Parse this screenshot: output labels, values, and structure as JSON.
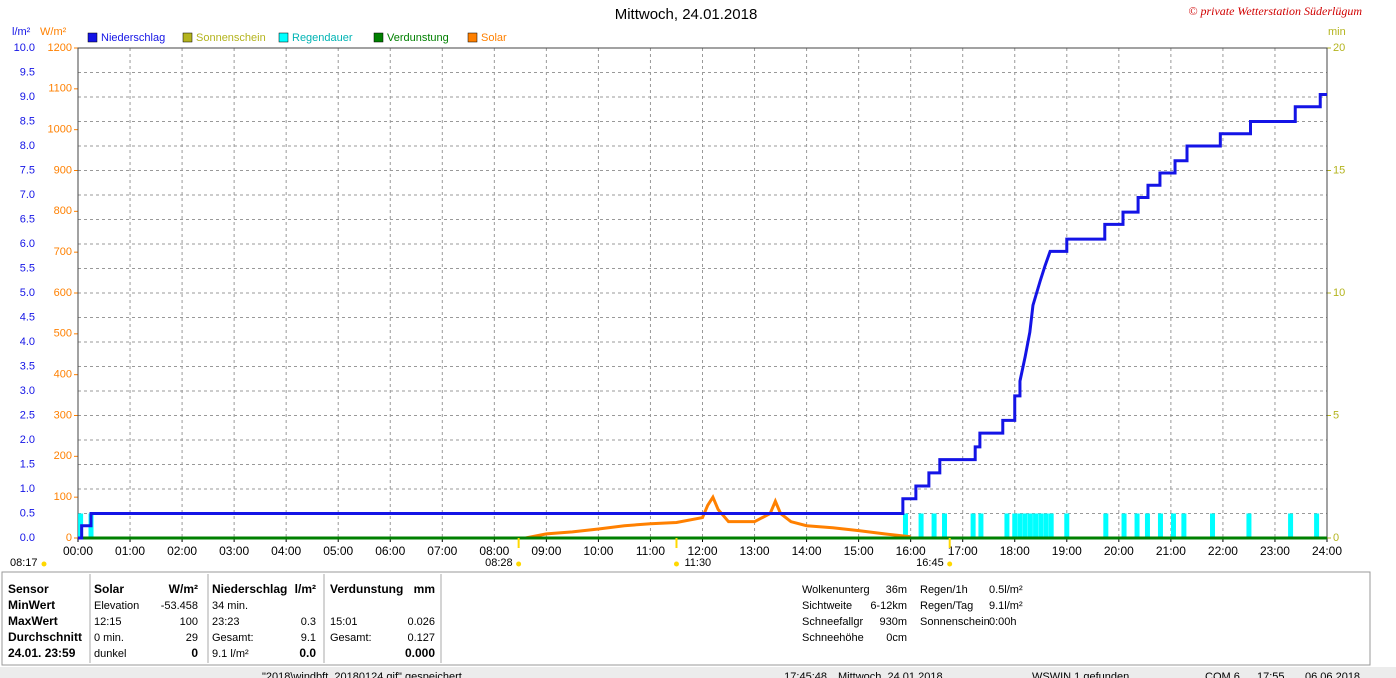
{
  "title": "Mittwoch, 24.01.2018",
  "copyright": "© private Wetterstation Süderlügum",
  "chart_data": {
    "type": "line",
    "ylabel": "l/m²",
    "y2label": "W/m²",
    "y3label": "min",
    "xlim": [
      0,
      24
    ],
    "xticks": [
      {
        "value": 0,
        "label": "00:00"
      },
      {
        "value": 1,
        "label": "01:00"
      },
      {
        "value": 2,
        "label": "02:00"
      },
      {
        "value": 3,
        "label": "03:00"
      },
      {
        "value": 4,
        "label": "04:00"
      },
      {
        "value": 5,
        "label": "05:00"
      },
      {
        "value": 6,
        "label": "06:00"
      },
      {
        "value": 7,
        "label": "07:00"
      },
      {
        "value": 8,
        "label": "08:00"
      },
      {
        "value": 9,
        "label": "09:00"
      },
      {
        "value": 10,
        "label": "10:00"
      },
      {
        "value": 11,
        "label": "11:00"
      },
      {
        "value": 12,
        "label": "12:00"
      },
      {
        "value": 13,
        "label": "13:00"
      },
      {
        "value": 14,
        "label": "14:00"
      },
      {
        "value": 15,
        "label": "15:00"
      },
      {
        "value": 16,
        "label": "16:00"
      },
      {
        "value": 17,
        "label": "17:00"
      },
      {
        "value": 18,
        "label": "18:00"
      },
      {
        "value": 19,
        "label": "19:00"
      },
      {
        "value": 20,
        "label": "20:00"
      },
      {
        "value": 21,
        "label": "21:00"
      },
      {
        "value": 22,
        "label": "22:00"
      },
      {
        "value": 23,
        "label": "23:00"
      },
      {
        "value": 24,
        "label": "24:00"
      }
    ],
    "ylim": [
      0,
      10
    ],
    "yticks": [
      {
        "value": 0,
        "label": "0.0"
      },
      0.5,
      {
        "value": 1,
        "label": "1.0"
      },
      1.5,
      {
        "value": 2,
        "label": "2.0"
      },
      2.5,
      {
        "value": 3,
        "label": "3.0"
      },
      3.5,
      {
        "value": 4,
        "label": "4.0"
      },
      4.5,
      {
        "value": 5,
        "label": "5.0"
      },
      5.5,
      {
        "value": 6,
        "label": "6.0"
      },
      6.5,
      {
        "value": 7,
        "label": "7.0"
      },
      7.5,
      {
        "value": 8,
        "label": "8.0"
      },
      8.5,
      {
        "value": 9,
        "label": "9.0"
      },
      9.5,
      {
        "value": 10,
        "label": "10.0"
      }
    ],
    "y2lim": [
      0,
      1200
    ],
    "y2ticks": [
      0,
      100,
      200,
      300,
      400,
      500,
      600,
      700,
      800,
      900,
      1000,
      1100,
      1200
    ],
    "y3lim": [
      0,
      20
    ],
    "y3ticks": [
      0,
      5,
      10,
      15,
      20
    ],
    "grid": true,
    "series": [
      {
        "name": "Niederschlag",
        "color": "#1414e6",
        "type": "line",
        "axis": "y",
        "x": [
          0,
          0.07,
          0.07,
          0.25,
          0.25,
          15.85,
          15.85,
          16.1,
          16.1,
          16.35,
          16.35,
          16.56,
          16.56,
          17.24,
          17.24,
          17.33,
          17.33,
          17.77,
          17.77,
          18.0,
          18.0,
          18.1,
          18.1,
          18.2,
          18.29,
          18.35,
          18.49,
          18.58,
          18.68,
          19.0,
          19.0,
          19.73,
          19.73,
          20.08,
          20.08,
          20.37,
          20.37,
          20.56,
          20.56,
          20.79,
          20.79,
          21.08,
          21.08,
          21.31,
          21.31,
          21.95,
          21.95,
          22.53,
          22.53,
          23.39,
          23.39,
          23.87,
          23.87,
          24
        ],
        "values": [
          0,
          0,
          0.25,
          0.25,
          0.5,
          0.5,
          0.8,
          0.8,
          1.06,
          1.06,
          1.33,
          1.33,
          1.6,
          1.6,
          1.86,
          1.86,
          2.14,
          2.14,
          2.4,
          2.4,
          2.9,
          2.9,
          3.2,
          3.7,
          4.2,
          4.75,
          5.25,
          5.55,
          5.85,
          5.85,
          6.1,
          6.1,
          6.4,
          6.4,
          6.65,
          6.65,
          6.95,
          6.95,
          7.2,
          7.2,
          7.45,
          7.45,
          7.7,
          7.7,
          8.0,
          8.0,
          8.25,
          8.25,
          8.5,
          8.5,
          8.8,
          8.8,
          9.05,
          9.05
        ]
      },
      {
        "name": "Sonnenschein",
        "color": "#b4b41e",
        "type": "line",
        "axis": "y3",
        "x": [],
        "values": []
      },
      {
        "name": "Regendauer",
        "color": "#00ffff",
        "type": "bar",
        "axis": "y3",
        "x": [
          0.05,
          0.25,
          15.9,
          16.2,
          16.45,
          16.65,
          17.2,
          17.35,
          17.85,
          18.0,
          18.1,
          18.2,
          18.3,
          18.4,
          18.5,
          18.6,
          18.7,
          19.0,
          19.75,
          20.1,
          20.35,
          20.55,
          20.8,
          21.05,
          21.25,
          21.8,
          22.5,
          23.3,
          23.8
        ],
        "values": [
          1,
          1,
          1,
          1,
          1,
          1,
          1,
          1,
          1,
          1,
          1,
          1,
          1,
          1,
          1,
          1,
          1,
          1,
          1,
          1,
          1,
          1,
          1,
          1,
          1,
          1,
          1,
          1,
          1
        ]
      },
      {
        "name": "Verdunstung",
        "color": "#008000",
        "type": "line",
        "axis": "y",
        "x": [
          0,
          24
        ],
        "values": [
          0,
          0
        ]
      },
      {
        "name": "Solar",
        "color": "#ff8000",
        "type": "line",
        "axis": "y2",
        "x": [
          8.6,
          9,
          9.5,
          10,
          10.5,
          11,
          11.5,
          12,
          12.1,
          12.2,
          12.3,
          12.5,
          13,
          13.3,
          13.4,
          13.5,
          13.7,
          14,
          14.5,
          15,
          15.5,
          16
        ],
        "values": [
          0,
          10,
          15,
          22,
          30,
          35,
          38,
          50,
          80,
          100,
          70,
          40,
          40,
          60,
          90,
          60,
          40,
          30,
          25,
          18,
          10,
          3
        ]
      }
    ],
    "sunrise": "08:17",
    "annotations": [
      {
        "x": 8.467,
        "label": "08:28"
      },
      {
        "x": 11.5,
        "label": "11:30"
      },
      {
        "x": 16.75,
        "label": "16:45"
      }
    ]
  },
  "stats": {
    "rows": [
      [
        "Sensor",
        "Solar",
        "W/m²",
        "Niederschlag",
        "l/m²",
        "Verdunstung",
        "mm"
      ],
      [
        "MinWert",
        "Elevation",
        "-53.458",
        "34 min.",
        null,
        null,
        null
      ],
      [
        "MaxWert",
        "12:15",
        "100",
        "23:23",
        "0.3",
        "15:01",
        "0.026"
      ],
      [
        "Durchschnitt",
        "0 min.",
        "29",
        "Gesamt:",
        "9.1",
        "Gesamt:",
        "0.127"
      ],
      [
        "24.01. 23:59",
        "dunkel",
        "0",
        "9.1 l/m²",
        "0.0",
        null,
        "0.000"
      ]
    ]
  },
  "info_left": [
    [
      "Wolkenunterg",
      "36m"
    ],
    [
      "Sichtweite",
      "6-12km"
    ],
    [
      "Schneefallgr",
      "930m"
    ],
    [
      "Schneehöhe",
      "0cm"
    ]
  ],
  "info_right": [
    [
      "Regen/1h",
      "0.5l/m²"
    ],
    [
      "Regen/Tag",
      "9.1l/m²"
    ],
    [
      "Sonnenschein",
      "0:00h"
    ]
  ],
  "statusbar": [
    "\"2018\\windbft_20180124.gif\" gespeichert",
    "17:45:48",
    "Mittwoch, 24.01.2018",
    "WSWIN 1 gefunden",
    "COM 6",
    "17:55",
    "06.06.2018"
  ]
}
